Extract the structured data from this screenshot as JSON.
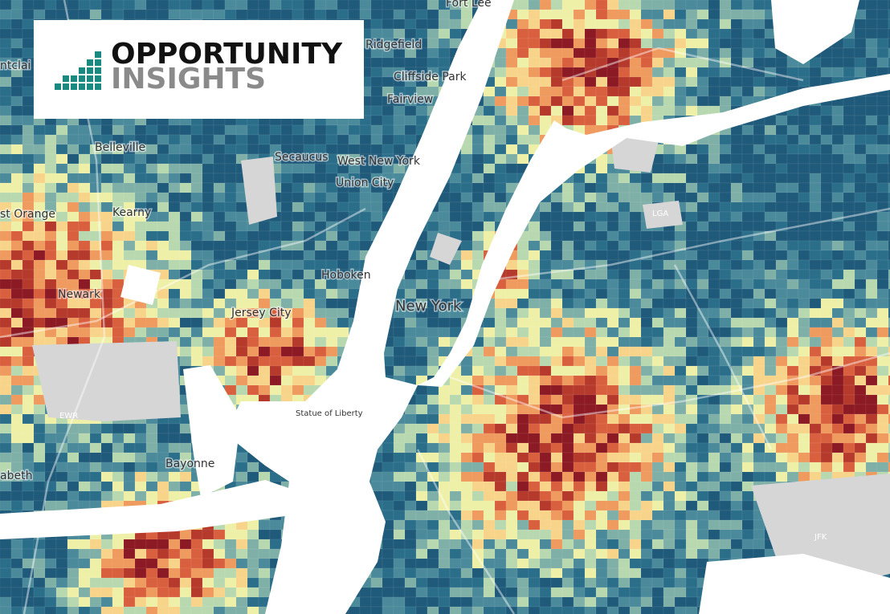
{
  "logo": {
    "line1": "OPPORTUNITY",
    "line2": "INSIGHTS"
  },
  "places": [
    "Fort Lee",
    "Ridgefield",
    "Cliffside Park",
    "Fairview",
    "ntclai",
    "Belleville",
    "Secaucus",
    "West New York",
    "Union City",
    "Kearny",
    "st Orange",
    "Hoboken",
    "Newark",
    "Jersey City",
    "New York",
    "LGA",
    "EWR",
    "Statue of Liberty",
    "Bayonne",
    "abeth",
    "JFK"
  ]
}
